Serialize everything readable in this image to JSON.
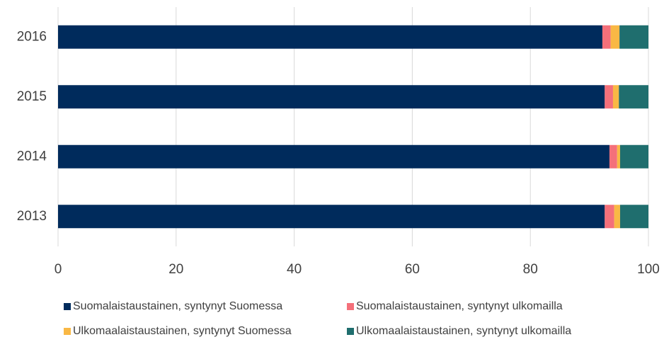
{
  "chart_data": {
    "type": "stacked_barh",
    "categories": [
      "2016",
      "2015",
      "2014",
      "2013"
    ],
    "series": [
      {
        "name": "Suomalaistaustainen, syntynyt Suomessa",
        "color": "#002b5c",
        "values": [
          92.2,
          92.6,
          93.4,
          92.6
        ]
      },
      {
        "name": "Suomalaistaustainen, syntynyt ulkomailla",
        "color": "#f4707a",
        "values": [
          1.4,
          1.4,
          1.3,
          1.6
        ]
      },
      {
        "name": "Ulkomaalaistaustainen, syntynyt Suomessa",
        "color": "#f9b845",
        "values": [
          1.5,
          1.0,
          0.5,
          1.0
        ]
      },
      {
        "name": "Ulkomaalaistaustainen, syntynyt ulkomailla",
        "color": "#1f6e6e",
        "values": [
          4.9,
          5.0,
          4.8,
          4.8
        ]
      }
    ],
    "xlim": [
      0,
      100
    ],
    "xticks": [
      0,
      20,
      40,
      60,
      80,
      100
    ],
    "grid": true
  }
}
